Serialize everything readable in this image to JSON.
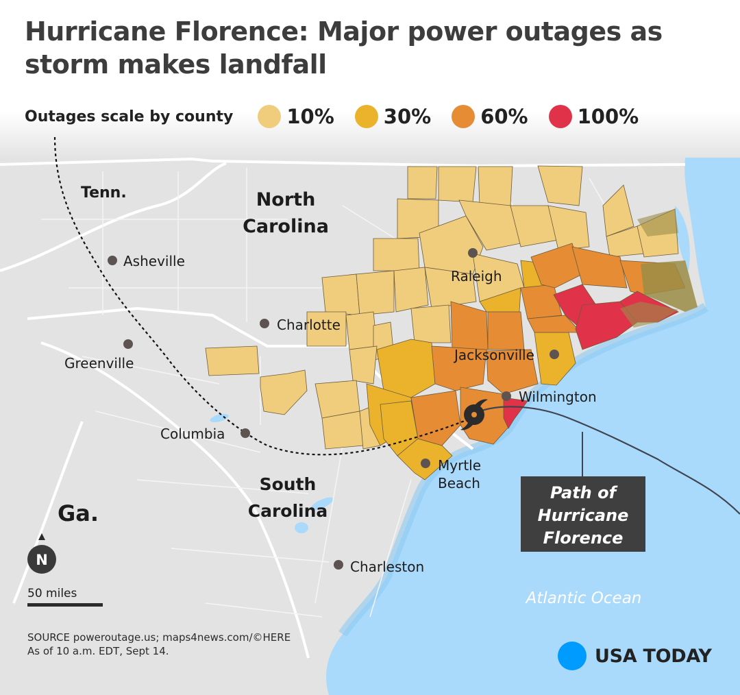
{
  "title": {
    "line1": "Hurricane Florence: Major power outages as",
    "line2": "storm makes landfall"
  },
  "legend": {
    "label": "Outages scale by county",
    "items": [
      {
        "value": "10%",
        "color": "#f0cd7d"
      },
      {
        "value": "30%",
        "color": "#eab32b"
      },
      {
        "value": "60%",
        "color": "#e68c35"
      },
      {
        "value": "100%",
        "color": "#e0334a"
      }
    ]
  },
  "map": {
    "state_labels": {
      "tenn": "Tenn.",
      "nc_line1": "North",
      "nc_line2": "Carolina",
      "sc_line1": "South",
      "sc_line2": "Carolina",
      "ga": "Ga."
    },
    "cities": {
      "asheville": "Asheville",
      "greenville": "Greenville",
      "charlotte": "Charlotte",
      "raleigh": "Raleigh",
      "jacksonville": "Jacksonville",
      "wilmington": "Wilmington",
      "columbia": "Columbia",
      "myrtle_line1": "Myrtle",
      "myrtle_line2": "Beach",
      "charleston": "Charleston"
    },
    "ocean": "Atlantic Ocean",
    "path_label": {
      "line1": "Path of",
      "line2": "Hurricane",
      "line3": "Florence"
    },
    "north": "N",
    "scale": "50 miles",
    "colors": {
      "land": "#e3e3e3",
      "water": "#a9d9fb",
      "coast_water": "#8fcaf3",
      "marsh": "#9b8c47"
    }
  },
  "source": {
    "line1": "SOURCE poweroutage.us; maps4news.com/©HERE",
    "line2": "As of 10 a.m. EDT, Sept 14."
  },
  "brand": "USA TODAY"
}
